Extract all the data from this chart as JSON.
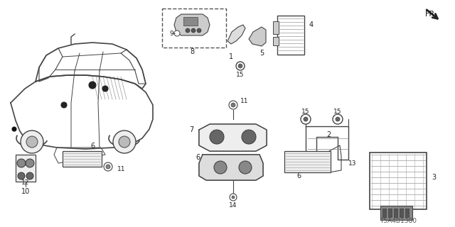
{
  "diagram_id": "T5A4B1380",
  "background_color": "#ffffff",
  "line_color": "#444444",
  "text_color": "#333333",
  "fig_w": 6.4,
  "fig_h": 3.2,
  "dpi": 100
}
